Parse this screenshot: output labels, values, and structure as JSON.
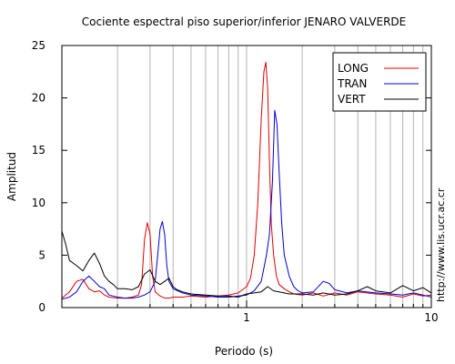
{
  "chart_data": {
    "type": "line",
    "title": "Cociente espectral piso superior/inferior  JENARO VALVERDE",
    "xlabel": "Periodo (s)",
    "ylabel": "Amplitud",
    "xscale": "log",
    "xlim": [
      0.1,
      10
    ],
    "ylim": [
      0,
      25
    ],
    "x_tick_labels": [
      "1",
      "10"
    ],
    "x_tick_values": [
      1,
      10
    ],
    "y_tick_values": [
      0,
      5,
      10,
      15,
      20,
      25
    ],
    "y_tick_labels": [
      "0",
      "5",
      "10",
      "15",
      "20",
      "25"
    ],
    "grid": "vertical",
    "legend_position": "top-right",
    "series": [
      {
        "name": "LONG",
        "color": "#e00000",
        "x": [
          0.1,
          0.11,
          0.12,
          0.13,
          0.14,
          0.15,
          0.16,
          0.17,
          0.18,
          0.2,
          0.22,
          0.24,
          0.26,
          0.27,
          0.28,
          0.29,
          0.3,
          0.31,
          0.32,
          0.34,
          0.36,
          0.38,
          0.4,
          0.45,
          0.5,
          0.6,
          0.7,
          0.8,
          0.9,
          1.0,
          1.05,
          1.1,
          1.15,
          1.2,
          1.24,
          1.27,
          1.3,
          1.33,
          1.36,
          1.4,
          1.45,
          1.5,
          1.6,
          1.7,
          1.8,
          2.0,
          2.3,
          2.6,
          3.0,
          3.5,
          4.0,
          5.0,
          6.0,
          7.0,
          8.0,
          9.0,
          10.0
        ],
        "values": [
          0.9,
          1.5,
          2.5,
          2.7,
          1.8,
          1.5,
          1.6,
          1.2,
          1.0,
          0.9,
          0.9,
          1.0,
          1.2,
          2.2,
          6.5,
          8.1,
          7.0,
          3.0,
          1.5,
          1.1,
          0.9,
          0.9,
          1.0,
          1.0,
          1.1,
          1.0,
          1.1,
          1.2,
          1.4,
          2.0,
          2.8,
          5.0,
          10.0,
          18.0,
          22.5,
          23.4,
          21.0,
          14.0,
          8.0,
          5.0,
          3.0,
          2.2,
          1.8,
          1.5,
          1.3,
          1.2,
          1.4,
          1.1,
          1.4,
          1.2,
          1.5,
          1.3,
          1.2,
          1.0,
          1.3,
          1.1,
          1.2
        ]
      },
      {
        "name": "TRAN",
        "color": "#0000d0",
        "x": [
          0.1,
          0.11,
          0.12,
          0.13,
          0.14,
          0.15,
          0.16,
          0.17,
          0.18,
          0.2,
          0.22,
          0.24,
          0.26,
          0.28,
          0.3,
          0.32,
          0.33,
          0.34,
          0.35,
          0.36,
          0.37,
          0.38,
          0.4,
          0.45,
          0.5,
          0.6,
          0.7,
          0.8,
          0.9,
          1.0,
          1.1,
          1.2,
          1.28,
          1.33,
          1.38,
          1.42,
          1.46,
          1.5,
          1.55,
          1.6,
          1.7,
          1.8,
          1.9,
          2.0,
          2.3,
          2.6,
          2.8,
          3.0,
          3.5,
          4.0,
          5.0,
          6.0,
          7.0,
          8.0,
          9.0,
          10.0
        ],
        "values": [
          0.8,
          1.0,
          1.5,
          2.5,
          3.0,
          2.5,
          2.0,
          1.8,
          1.2,
          1.0,
          0.9,
          0.9,
          1.0,
          1.2,
          1.5,
          2.5,
          5.0,
          7.5,
          8.2,
          7.0,
          4.0,
          2.5,
          1.8,
          1.4,
          1.2,
          1.1,
          1.0,
          1.0,
          1.1,
          1.2,
          1.6,
          2.5,
          5.0,
          7.0,
          12.0,
          18.8,
          17.5,
          13.0,
          8.0,
          5.0,
          3.0,
          2.0,
          1.6,
          1.4,
          1.5,
          2.5,
          2.3,
          1.7,
          1.4,
          1.6,
          1.4,
          1.3,
          1.2,
          1.4,
          1.2,
          1.0
        ]
      },
      {
        "name": "VERT",
        "color": "#000000",
        "x": [
          0.1,
          0.105,
          0.11,
          0.12,
          0.13,
          0.14,
          0.15,
          0.16,
          0.17,
          0.18,
          0.19,
          0.2,
          0.22,
          0.24,
          0.26,
          0.28,
          0.3,
          0.32,
          0.34,
          0.36,
          0.38,
          0.4,
          0.42,
          0.45,
          0.5,
          0.6,
          0.7,
          0.8,
          0.9,
          1.0,
          1.1,
          1.2,
          1.3,
          1.4,
          1.5,
          1.7,
          2.0,
          2.3,
          2.6,
          3.0,
          3.5,
          4.0,
          4.5,
          5.0,
          6.0,
          7.0,
          8.0,
          9.0,
          10.0
        ],
        "values": [
          7.3,
          6.0,
          4.5,
          4.0,
          3.5,
          4.5,
          5.2,
          4.2,
          3.0,
          2.5,
          2.2,
          1.8,
          1.8,
          1.7,
          2.0,
          3.2,
          3.6,
          2.5,
          2.2,
          2.5,
          2.8,
          2.0,
          1.7,
          1.5,
          1.3,
          1.2,
          1.1,
          1.1,
          1.0,
          1.3,
          1.4,
          1.5,
          2.0,
          1.6,
          1.5,
          1.3,
          1.3,
          1.2,
          1.4,
          1.2,
          1.3,
          1.6,
          2.0,
          1.6,
          1.4,
          2.1,
          1.6,
          1.9,
          1.4
        ]
      }
    ]
  },
  "watermark": "http://www.lis.ucr.ac.cr"
}
